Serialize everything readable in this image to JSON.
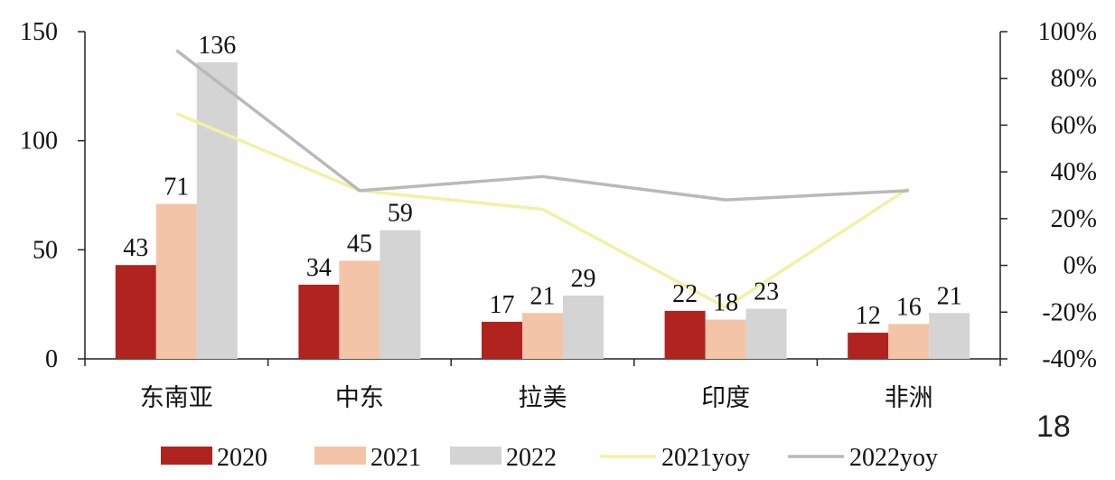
{
  "page_number": "18",
  "chart_data": {
    "type": "bar",
    "categories": [
      "东南亚",
      "中东",
      "拉美",
      "印度",
      "非洲"
    ],
    "series": [
      {
        "name": "2020",
        "kind": "bar",
        "axis": "left",
        "color": "#b0231e",
        "values": [
          43,
          34,
          17,
          22,
          12
        ]
      },
      {
        "name": "2021",
        "kind": "bar",
        "axis": "left",
        "color": "#f4c4a8",
        "values": [
          71,
          45,
          21,
          18,
          16
        ]
      },
      {
        "name": "2022",
        "kind": "bar",
        "axis": "left",
        "color": "#d4d4d4",
        "values": [
          136,
          59,
          29,
          23,
          21
        ]
      },
      {
        "name": "2021yoy",
        "kind": "line",
        "axis": "right",
        "color": "#f3f0a6",
        "values": [
          65,
          32,
          24,
          -18,
          33
        ]
      },
      {
        "name": "2022yoy",
        "kind": "line",
        "axis": "right",
        "color": "#b9b9b9",
        "values": [
          92,
          32,
          38,
          28,
          32
        ]
      }
    ],
    "y_left": {
      "min": 0,
      "max": 150,
      "ticks": [
        "0",
        "50",
        "100",
        "150"
      ]
    },
    "y_right": {
      "min": -40,
      "max": 100,
      "ticks": [
        "-40%",
        "-20%",
        "0%",
        "20%",
        "40%",
        "60%",
        "80%",
        "100%"
      ]
    },
    "data_labels": [
      [
        "43",
        "71",
        "136"
      ],
      [
        "34",
        "45",
        "59"
      ],
      [
        "17",
        "21",
        "29"
      ],
      [
        "22",
        "18",
        "23"
      ],
      [
        "12",
        "16",
        "21"
      ]
    ],
    "grid": false,
    "legend_position": "bottom"
  }
}
